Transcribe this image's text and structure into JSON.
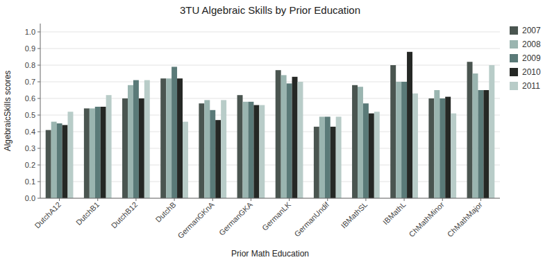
{
  "chart_data": {
    "type": "bar",
    "title": "3TU Algebraic Skills by Prior Education",
    "xlabel": "Prior Math Education",
    "ylabel": "AlgebraicSkills scores",
    "categories": [
      "DutchA12",
      "DutchB1",
      "DutchB12",
      "DutchB",
      "GermanGKnA",
      "GermanGKA",
      "GermanLK",
      "GermanUndif",
      "IBMathSL",
      "IBMathL",
      "ChMathMinor",
      "ChMathMajor"
    ],
    "series": [
      {
        "name": "2007",
        "color": "#4a5550",
        "values": [
          0.41,
          0.54,
          0.6,
          0.72,
          0.57,
          0.62,
          0.77,
          0.43,
          0.68,
          0.8,
          0.6,
          0.82
        ]
      },
      {
        "name": "2008",
        "color": "#9ab5b0",
        "values": [
          0.46,
          0.54,
          0.68,
          0.72,
          0.59,
          0.58,
          0.74,
          0.49,
          0.67,
          0.7,
          0.65,
          0.75
        ]
      },
      {
        "name": "2009",
        "color": "#5a7a78",
        "values": [
          0.45,
          0.55,
          0.71,
          0.79,
          0.53,
          0.58,
          0.69,
          0.49,
          0.57,
          0.7,
          0.6,
          0.65
        ]
      },
      {
        "name": "2010",
        "color": "#252825",
        "values": [
          0.44,
          0.55,
          0.6,
          0.72,
          0.47,
          0.56,
          0.73,
          0.43,
          0.51,
          0.88,
          0.61,
          0.65
        ]
      },
      {
        "name": "2011",
        "color": "#b8ccc8",
        "values": [
          0.52,
          0.62,
          0.71,
          0.46,
          0.59,
          0.56,
          0.7,
          0.49,
          0.52,
          0.63,
          0.51,
          0.8
        ]
      }
    ],
    "ylim": [
      0.0,
      1.05
    ],
    "yticks": [
      {
        "value": 0,
        "label": "0.0"
      },
      0.1,
      0.2,
      0.3,
      0.4,
      0.5,
      0.6,
      0.7,
      0.8,
      0.9,
      {
        "value": 1,
        "label": "1.0"
      }
    ],
    "grid": true,
    "legend": "right"
  }
}
